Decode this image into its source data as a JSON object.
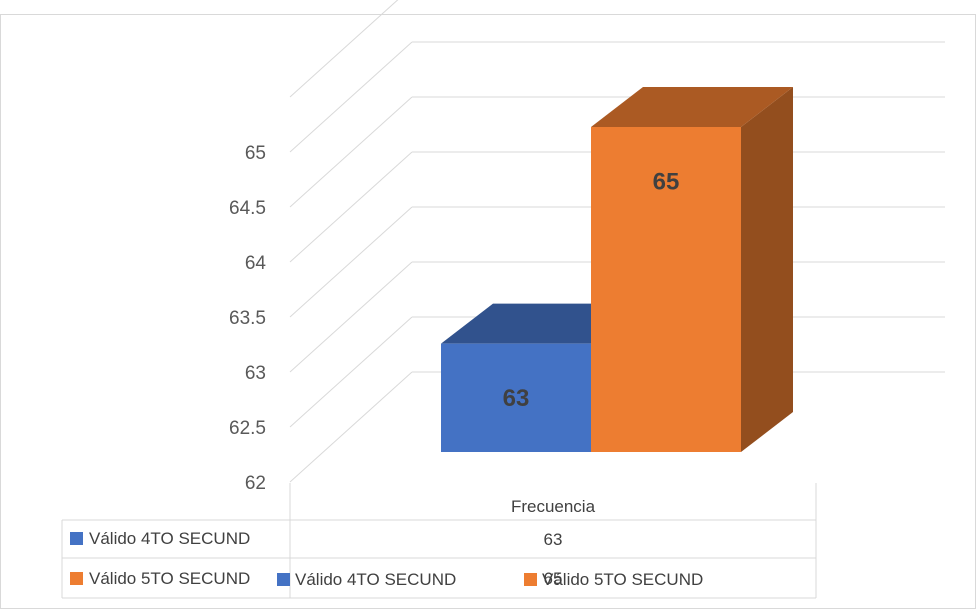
{
  "chart_data": {
    "type": "bar",
    "categories": [
      "Frecuencia"
    ],
    "series": [
      {
        "name": "Válido 4TO SECUND",
        "values": [
          63
        ],
        "color": "#4472C4"
      },
      {
        "name": "Válido 5TO SECUND",
        "values": [
          65
        ],
        "color": "#ED7D31"
      }
    ],
    "y_ticks": [
      "62",
      "62.5",
      "63",
      "63.5",
      "64",
      "64.5",
      "65"
    ],
    "ylim": [
      62,
      65
    ],
    "grid": true,
    "three_d": true,
    "data_labels": [
      "63",
      "65"
    ],
    "data_table": {
      "header": "Frecuencia",
      "rows": [
        {
          "label": "Válido 4TO SECUND",
          "value": "63"
        },
        {
          "label": "Válido 5TO SECUND",
          "value": "65"
        }
      ]
    },
    "legend": {
      "position": "bottom",
      "entries": [
        "Válido 4TO SECUND",
        "Válido 5TO SECUND"
      ]
    }
  }
}
